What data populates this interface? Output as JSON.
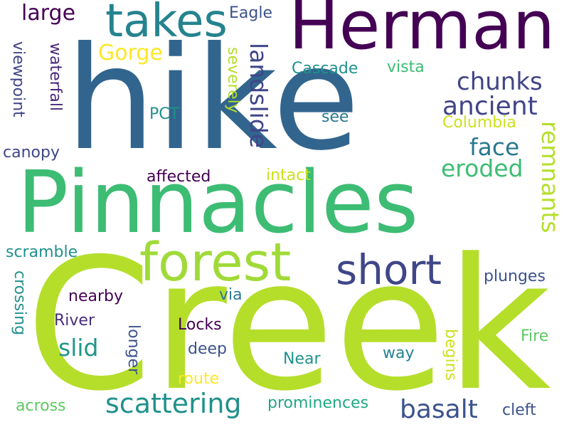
{
  "words": {
    "creek": "Creek",
    "hike": "hike",
    "pinnacles": "Pinnacles",
    "herman": "Herman",
    "forest": "forest",
    "takes": "takes",
    "short": "short",
    "scattering": "scattering",
    "basalt": "basalt",
    "ancient": "ancient",
    "chunks": "chunks",
    "landslide": "landslide",
    "eroded": "eroded",
    "face": "face",
    "large": "large",
    "gorge": "Gorge",
    "slid": "slid",
    "remnants": "remnants",
    "eagle": "Eagle",
    "cascade": "Cascade",
    "vista": "vista",
    "viewpoint": "viewpoint",
    "waterfall": "waterfall",
    "severely": "severely",
    "columbia": "Columbia",
    "pct": "PCT",
    "see": "see",
    "canopy": "canopy",
    "affected": "affected",
    "intact": "intact",
    "scramble": "scramble",
    "crossing": "crossing",
    "plunges": "plunges",
    "nearby": "nearby",
    "via": "via",
    "river": "River",
    "locks": "Locks",
    "longer": "longer",
    "deep": "deep",
    "fire": "Fire",
    "begins": "begins",
    "way": "way",
    "near": "Near",
    "route": "route",
    "across": "across",
    "prominences": "prominences",
    "cleft": "cleft"
  },
  "colors": {
    "background": "#ffffff",
    "palette": [
      "#440154",
      "#482878",
      "#3e4989",
      "#31688e",
      "#26828e",
      "#1f9e89",
      "#35b779",
      "#6ece58",
      "#b5de2b",
      "#fde725"
    ]
  }
}
